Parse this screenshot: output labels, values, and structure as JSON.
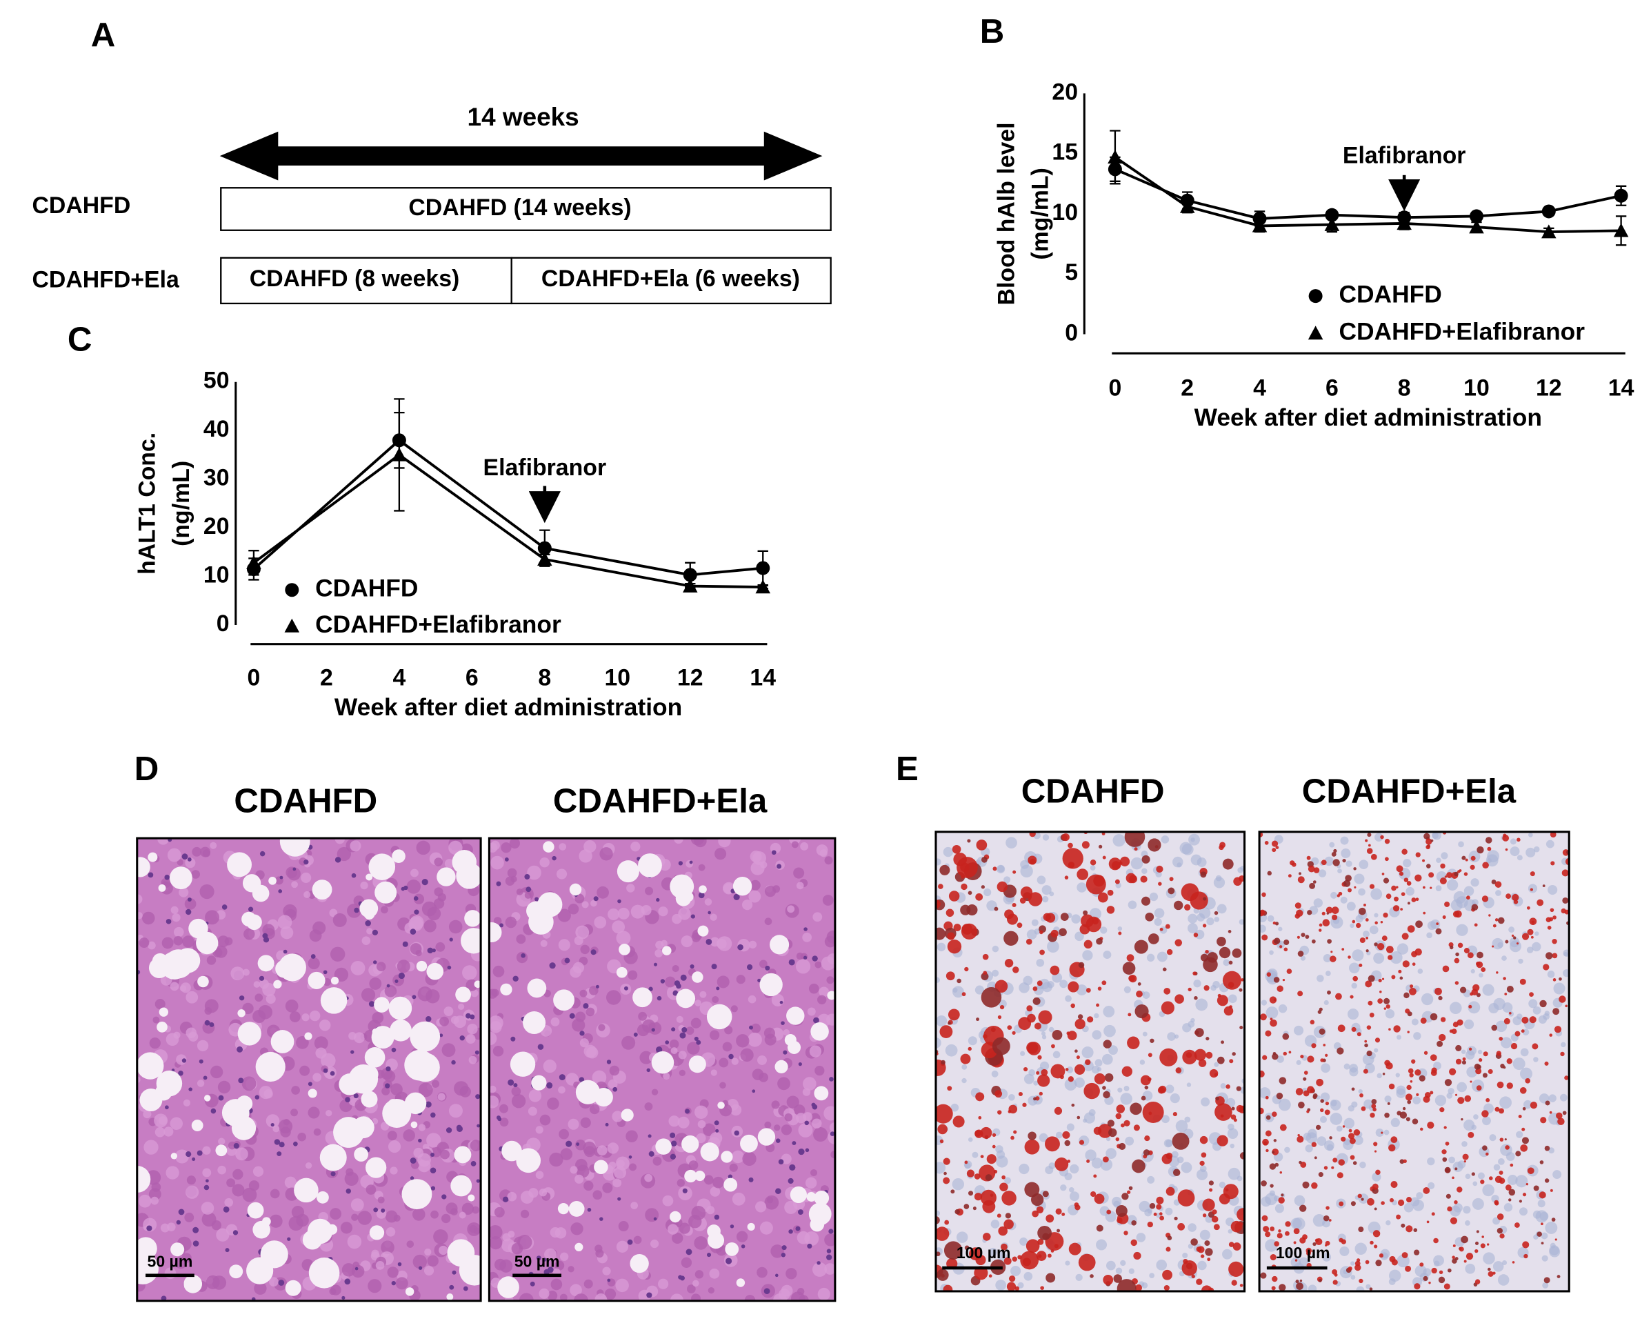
{
  "panel_a": {
    "label": "A",
    "duration": "14 weeks",
    "rows": [
      {
        "group": "CDAHFD",
        "segments": [
          "CDAHFD (14 weeks)"
        ]
      },
      {
        "group": "CDAHFD+Ela",
        "segments": [
          "CDAHFD (8 weeks)",
          "CDAHFD+Ela (6 weeks)"
        ]
      }
    ]
  },
  "chart_data": [
    {
      "type": "line",
      "panel": "B",
      "ylabel": [
        "Blood hAlb level",
        "(mg/mL)"
      ],
      "xlabel": "Week after diet administration",
      "x": [
        0,
        2,
        4,
        6,
        8,
        10,
        12,
        14
      ],
      "xlim": [
        0,
        14
      ],
      "xticks": [
        0,
        2,
        4,
        6,
        8,
        10,
        12,
        14
      ],
      "ylim": [
        0,
        20
      ],
      "yticks": [
        0,
        5,
        10,
        15,
        20
      ],
      "annotation": {
        "text": "Elafibranor",
        "x": 8
      },
      "series": [
        {
          "name": "CDAHFD",
          "marker": "circle",
          "color": "#000000",
          "values": [
            13.7,
            11.1,
            9.6,
            9.9,
            9.7,
            9.8,
            10.2,
            11.5
          ],
          "errors": [
            1.0,
            0.7,
            0.6,
            0.3,
            0.4,
            0.3,
            0.3,
            0.8
          ]
        },
        {
          "name": "CDAHFD+Elafibranor",
          "marker": "triangle",
          "color": "#000000",
          "values": [
            14.7,
            10.6,
            9.0,
            9.1,
            9.2,
            8.9,
            8.5,
            8.6
          ],
          "errors": [
            2.2,
            0.5,
            0.5,
            0.6,
            0.5,
            0.4,
            0.3,
            1.2
          ]
        }
      ]
    },
    {
      "type": "line",
      "panel": "C",
      "ylabel": [
        "hALT1 Conc.",
        "(ng/mL)"
      ],
      "xlabel": "Week after diet administration",
      "x": [
        0,
        4,
        8,
        12,
        14
      ],
      "xlim": [
        0,
        14
      ],
      "xticks": [
        0,
        2,
        4,
        6,
        8,
        10,
        12,
        14
      ],
      "ylim": [
        0,
        50
      ],
      "yticks": [
        0,
        10,
        20,
        30,
        40,
        50
      ],
      "annotation": {
        "text": "Elafibranor",
        "x": 8
      },
      "series": [
        {
          "name": "CDAHFD",
          "marker": "circle",
          "color": "#000000",
          "values": [
            11.5,
            38,
            15.8,
            10.3,
            11.7
          ],
          "errors": [
            2.2,
            5.7,
            3.7,
            2.5,
            3.5
          ]
        },
        {
          "name": "CDAHFD+Elafibranor",
          "marker": "triangle",
          "color": "#000000",
          "values": [
            12.8,
            35,
            13.5,
            8,
            7.8
          ],
          "errors": [
            2.5,
            11.5,
            1.0,
            0.5,
            0.3
          ]
        }
      ]
    }
  ],
  "panel_d": {
    "label": "D",
    "images": [
      {
        "title": "CDAHFD",
        "scale_bar": "50 µm"
      },
      {
        "title": "CDAHFD+Ela",
        "scale_bar": "50 µm"
      }
    ]
  },
  "panel_e": {
    "label": "E",
    "images": [
      {
        "title": "CDAHFD",
        "scale_bar": "100 µm"
      },
      {
        "title": "CDAHFD+Ela",
        "scale_bar": "100 µm"
      }
    ]
  }
}
